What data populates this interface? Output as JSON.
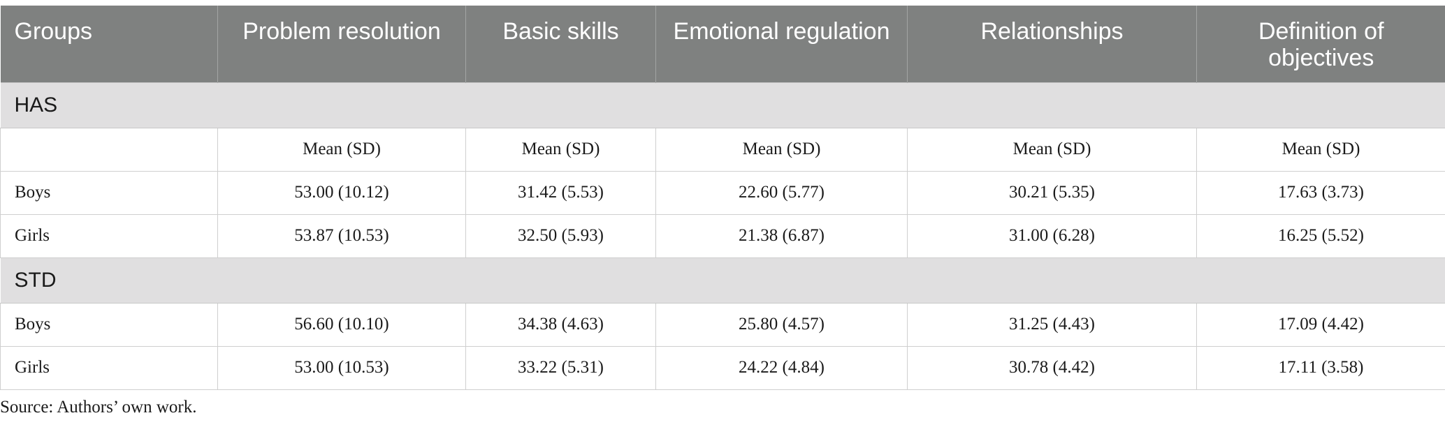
{
  "table": {
    "headers": [
      "Groups",
      "Problem resolution",
      "Basic skills",
      "Emotional regulation",
      "Relationships",
      "Definition of objectives"
    ],
    "groups": [
      {
        "name": "HAS",
        "subheader": [
          "",
          "Mean (SD)",
          "Mean (SD)",
          "Mean (SD)",
          "Mean (SD)",
          "Mean (SD)"
        ],
        "rows": [
          [
            "Boys",
            "53.00 (10.12)",
            "31.42 (5.53)",
            "22.60 (5.77)",
            "30.21 (5.35)",
            "17.63 (3.73)"
          ],
          [
            "Girls",
            "53.87 (10.53)",
            "32.50 (5.93)",
            "21.38 (6.87)",
            "31.00 (6.28)",
            "16.25 (5.52)"
          ]
        ]
      },
      {
        "name": "STD",
        "rows": [
          [
            "Boys",
            "56.60 (10.10)",
            "34.38 (4.63)",
            "25.80 (4.57)",
            "31.25 (4.43)",
            "17.09 (4.42)"
          ],
          [
            "Girls",
            "53.00 (10.53)",
            "33.22 (5.31)",
            "24.22 (4.84)",
            "30.78 (4.42)",
            "17.11 (3.58)"
          ]
        ]
      }
    ]
  },
  "source": "Source: Authors’ own work."
}
